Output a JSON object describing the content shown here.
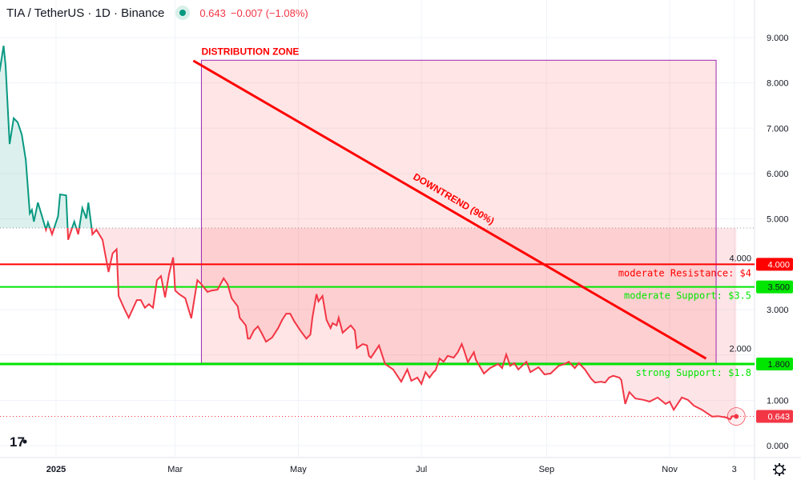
{
  "header": {
    "symbol": "TIA / TetherUS · 1D · Binance",
    "status_icon": "market-open-dot-icon",
    "last_price": "0.643",
    "change": "−0.007 (−1.08%)"
  },
  "colors": {
    "up": "#089981",
    "down": "#f23645",
    "resistance": "#ff0000",
    "support": "#00e600",
    "zone_border": "#9c27b0"
  },
  "chart_data": {
    "type": "line",
    "style": "baseline",
    "baseline": 4.8,
    "ylim": [
      0,
      9
    ],
    "grid": true,
    "y_ticks": [
      "0.000",
      "1.000",
      "2.000",
      "3.000",
      "4.000",
      "5.000",
      "6.000",
      "7.000",
      "8.000",
      "9.000"
    ],
    "x_ticks": [
      {
        "date": "2025-01-01",
        "label": "2025"
      },
      {
        "date": "2025-03-01",
        "label": "Mar"
      },
      {
        "date": "2025-05-01",
        "label": "May"
      },
      {
        "date": "2025-07-01",
        "label": "Jul"
      },
      {
        "date": "2025-09-01",
        "label": "Sep"
      },
      {
        "date": "2025-11-01",
        "label": "Nov"
      },
      {
        "date": "2025-12-03",
        "label": "3"
      }
    ],
    "series": [
      {
        "points": [
          [
            "2024-12-04",
            8.24
          ],
          [
            "2024-12-06",
            8.82
          ],
          [
            "2024-12-07",
            8.38
          ],
          [
            "2024-12-09",
            6.65
          ],
          [
            "2024-12-11",
            7.22
          ],
          [
            "2024-12-13",
            7.13
          ],
          [
            "2024-12-15",
            6.86
          ],
          [
            "2024-12-17",
            6.3
          ],
          [
            "2024-12-19",
            5.12
          ],
          [
            "2024-12-20",
            5.2
          ],
          [
            "2024-12-21",
            4.94
          ],
          [
            "2024-12-23",
            5.36
          ],
          [
            "2024-12-25",
            5.06
          ],
          [
            "2024-12-27",
            4.76
          ],
          [
            "2024-12-28",
            4.92
          ],
          [
            "2024-12-30",
            4.66
          ],
          [
            "2025-01-02",
            5.06
          ],
          [
            "2025-01-03",
            5.54
          ],
          [
            "2025-01-06",
            5.52
          ],
          [
            "2025-01-07",
            4.54
          ],
          [
            "2025-01-10",
            4.94
          ],
          [
            "2025-01-12",
            4.66
          ],
          [
            "2025-01-14",
            5.24
          ],
          [
            "2025-01-16",
            5.01
          ],
          [
            "2025-01-17",
            5.36
          ],
          [
            "2025-01-19",
            4.66
          ],
          [
            "2025-01-21",
            4.76
          ],
          [
            "2025-01-24",
            4.54
          ],
          [
            "2025-01-27",
            3.83
          ],
          [
            "2025-01-29",
            4.24
          ],
          [
            "2025-01-31",
            4.33
          ],
          [
            "2025-02-01",
            3.3
          ],
          [
            "2025-02-04",
            3.0
          ],
          [
            "2025-02-06",
            2.82
          ],
          [
            "2025-02-10",
            3.21
          ],
          [
            "2025-02-12",
            3.21
          ],
          [
            "2025-02-14",
            3.04
          ],
          [
            "2025-02-16",
            3.12
          ],
          [
            "2025-02-18",
            3.04
          ],
          [
            "2025-02-20",
            3.65
          ],
          [
            "2025-02-22",
            3.74
          ],
          [
            "2025-02-24",
            3.27
          ],
          [
            "2025-02-26",
            3.79
          ],
          [
            "2025-02-28",
            4.15
          ],
          [
            "2025-03-01",
            3.42
          ],
          [
            "2025-03-03",
            3.34
          ],
          [
            "2025-03-06",
            3.25
          ],
          [
            "2025-03-09",
            2.81
          ],
          [
            "2025-03-12",
            3.65
          ],
          [
            "2025-03-14",
            3.56
          ],
          [
            "2025-03-17",
            3.39
          ],
          [
            "2025-03-19",
            3.42
          ],
          [
            "2025-03-22",
            3.44
          ],
          [
            "2025-03-25",
            3.69
          ],
          [
            "2025-03-27",
            3.56
          ],
          [
            "2025-03-29",
            3.25
          ],
          [
            "2025-04-01",
            3.07
          ],
          [
            "2025-04-02",
            2.82
          ],
          [
            "2025-04-05",
            2.65
          ],
          [
            "2025-04-06",
            2.36
          ],
          [
            "2025-04-07",
            2.36
          ],
          [
            "2025-04-09",
            2.54
          ],
          [
            "2025-04-11",
            2.63
          ],
          [
            "2025-04-13",
            2.47
          ],
          [
            "2025-04-15",
            2.29
          ],
          [
            "2025-04-18",
            2.38
          ],
          [
            "2025-04-21",
            2.59
          ],
          [
            "2025-04-23",
            2.77
          ],
          [
            "2025-04-25",
            2.91
          ],
          [
            "2025-04-27",
            2.91
          ],
          [
            "2025-04-29",
            2.74
          ],
          [
            "2025-05-02",
            2.54
          ],
          [
            "2025-05-05",
            2.36
          ],
          [
            "2025-05-07",
            2.45
          ],
          [
            "2025-05-08",
            2.82
          ],
          [
            "2025-05-10",
            3.34
          ],
          [
            "2025-05-11",
            3.18
          ],
          [
            "2025-05-13",
            3.3
          ],
          [
            "2025-05-15",
            2.77
          ],
          [
            "2025-05-17",
            2.59
          ],
          [
            "2025-05-18",
            2.7
          ],
          [
            "2025-05-20",
            2.65
          ],
          [
            "2025-05-21",
            2.82
          ],
          [
            "2025-05-23",
            2.49
          ],
          [
            "2025-05-27",
            2.65
          ],
          [
            "2025-05-29",
            2.54
          ],
          [
            "2025-05-30",
            2.15
          ],
          [
            "2025-06-02",
            2.24
          ],
          [
            "2025-06-04",
            2.21
          ],
          [
            "2025-06-05",
            1.98
          ],
          [
            "2025-06-06",
            1.94
          ],
          [
            "2025-06-10",
            2.21
          ],
          [
            "2025-06-13",
            1.8
          ],
          [
            "2025-06-17",
            1.68
          ],
          [
            "2025-06-21",
            1.41
          ],
          [
            "2025-06-24",
            1.68
          ],
          [
            "2025-06-26",
            1.43
          ],
          [
            "2025-06-29",
            1.5
          ],
          [
            "2025-07-01",
            1.36
          ],
          [
            "2025-07-03",
            1.62
          ],
          [
            "2025-07-05",
            1.5
          ],
          [
            "2025-07-07",
            1.62
          ],
          [
            "2025-07-08",
            1.66
          ],
          [
            "2025-07-10",
            1.92
          ],
          [
            "2025-07-12",
            1.85
          ],
          [
            "2025-07-14",
            1.98
          ],
          [
            "2025-07-17",
            1.94
          ],
          [
            "2025-07-19",
            2.06
          ],
          [
            "2025-07-21",
            2.24
          ],
          [
            "2025-07-22",
            2.12
          ],
          [
            "2025-07-24",
            1.84
          ],
          [
            "2025-07-27",
            2.06
          ],
          [
            "2025-07-28",
            1.89
          ],
          [
            "2025-08-01",
            1.59
          ],
          [
            "2025-08-04",
            1.71
          ],
          [
            "2025-08-08",
            1.8
          ],
          [
            "2025-08-10",
            1.71
          ],
          [
            "2025-08-12",
            2.01
          ],
          [
            "2025-08-14",
            1.76
          ],
          [
            "2025-08-16",
            1.82
          ],
          [
            "2025-08-18",
            1.68
          ],
          [
            "2025-08-22",
            1.85
          ],
          [
            "2025-08-24",
            1.62
          ],
          [
            "2025-08-28",
            1.73
          ],
          [
            "2025-08-31",
            1.57
          ],
          [
            "2025-09-03",
            1.59
          ],
          [
            "2025-09-07",
            1.76
          ],
          [
            "2025-09-10",
            1.8
          ],
          [
            "2025-09-12",
            1.85
          ],
          [
            "2025-09-15",
            1.71
          ],
          [
            "2025-09-17",
            1.82
          ],
          [
            "2025-09-20",
            1.68
          ],
          [
            "2025-09-23",
            1.48
          ],
          [
            "2025-09-25",
            1.39
          ],
          [
            "2025-09-28",
            1.41
          ],
          [
            "2025-09-30",
            1.39
          ],
          [
            "2025-10-02",
            1.5
          ],
          [
            "2025-10-04",
            1.54
          ],
          [
            "2025-10-07",
            1.5
          ],
          [
            "2025-10-08",
            1.45
          ],
          [
            "2025-10-10",
            0.92
          ],
          [
            "2025-10-12",
            1.18
          ],
          [
            "2025-10-15",
            1.04
          ],
          [
            "2025-10-19",
            1.01
          ],
          [
            "2025-10-22",
            0.97
          ],
          [
            "2025-10-26",
            1.06
          ],
          [
            "2025-10-30",
            0.92
          ],
          [
            "2025-11-01",
            0.97
          ],
          [
            "2025-11-03",
            0.79
          ],
          [
            "2025-11-07",
            1.06
          ],
          [
            "2025-11-10",
            1.01
          ],
          [
            "2025-11-13",
            0.88
          ],
          [
            "2025-11-17",
            0.79
          ],
          [
            "2025-11-22",
            0.64
          ],
          [
            "2025-11-25",
            0.65
          ],
          [
            "2025-11-29",
            0.62
          ],
          [
            "2025-12-01",
            0.58
          ],
          [
            "2025-12-02",
            0.65
          ],
          [
            "2025-12-04",
            0.643
          ]
        ]
      }
    ],
    "horizontal_lines": [
      {
        "value": 4.0,
        "axis_label": "4.000",
        "text": "moderate Resistance: $4",
        "kind": "resistance"
      },
      {
        "value": 3.5,
        "axis_label": "3.500",
        "text": "moderate Support: $3.5",
        "kind": "support"
      },
      {
        "value": 1.8,
        "axis_label": "1.800",
        "text": "strong Support: $1.8",
        "kind": "support"
      }
    ],
    "last_price_label": "0.643",
    "zone": {
      "label": "DISTRIBUTION ZONE",
      "start": "2025-03-14",
      "end": "2025-11-24",
      "top": 8.5,
      "bottom": 1.82
    },
    "trendline": {
      "label": "DOWNTREND (90%)",
      "start": [
        "2025-03-10",
        8.49
      ],
      "end": [
        "2025-11-19",
        1.92
      ]
    }
  },
  "footer": {
    "logo": "TV",
    "settings_icon": "gear-icon"
  }
}
